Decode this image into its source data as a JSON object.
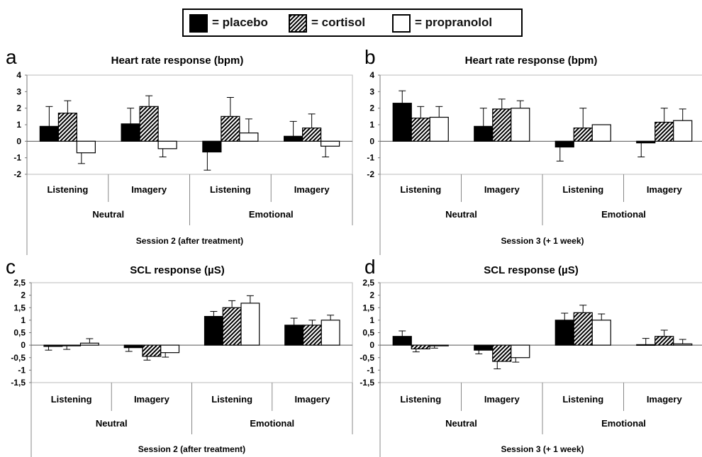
{
  "legend": {
    "items": [
      {
        "key": "placebo",
        "label": "= placebo",
        "fill": "solid-black"
      },
      {
        "key": "cortisol",
        "label": "= cortisol",
        "fill": "hatched"
      },
      {
        "key": "propranolol",
        "label": "= propranolol",
        "fill": "white"
      }
    ]
  },
  "colors": {
    "placebo": "#000000",
    "hatch": "#000000",
    "propranolol": "#ffffff",
    "axis": "#888888",
    "grid": "#bbbbbb"
  },
  "chart_data": [
    {
      "panel": "a",
      "type": "bar",
      "title": "Heart rate response (bpm)",
      "categories": [
        "Listening",
        "Imagery",
        "Listening",
        "Imagery"
      ],
      "groups": [
        "Neutral",
        "Emotional"
      ],
      "session": "Session 2 (after treatment)",
      "yticks": [
        "4",
        "3",
        "2",
        "1",
        "0",
        "-1",
        "-2"
      ],
      "ylim": [
        -2,
        4
      ],
      "series": [
        {
          "name": "placebo",
          "values": [
            0.9,
            1.05,
            -0.65,
            0.3
          ],
          "errors": [
            1.2,
            0.95,
            1.1,
            0.9
          ]
        },
        {
          "name": "cortisol",
          "values": [
            1.7,
            2.1,
            1.5,
            0.8
          ],
          "errors": [
            0.75,
            0.65,
            1.15,
            0.85
          ]
        },
        {
          "name": "propranolol",
          "values": [
            -0.7,
            -0.45,
            0.5,
            -0.3
          ],
          "errors": [
            0.65,
            0.5,
            0.85,
            0.65
          ]
        }
      ]
    },
    {
      "panel": "b",
      "type": "bar",
      "title": "Heart rate response (bpm)",
      "categories": [
        "Listening",
        "Imagery",
        "Listening",
        "Imagery"
      ],
      "groups": [
        "Neutral",
        "Emotional"
      ],
      "session": "Session 3 (+ 1 week)",
      "yticks": [
        "4",
        "3",
        "2",
        "1",
        "0",
        "-1",
        "-2"
      ],
      "ylim": [
        -2,
        4
      ],
      "series": [
        {
          "name": "placebo",
          "values": [
            2.3,
            0.9,
            -0.35,
            -0.1
          ],
          "errors": [
            0.75,
            1.1,
            0.85,
            0.85
          ]
        },
        {
          "name": "cortisol",
          "values": [
            1.4,
            1.95,
            0.8,
            1.15
          ],
          "errors": [
            0.7,
            0.6,
            1.2,
            0.85
          ]
        },
        {
          "name": "propranolol",
          "values": [
            1.45,
            2.0,
            1.0,
            1.25
          ],
          "errors": [
            0.65,
            0.45,
            0.0,
            0.7
          ]
        }
      ]
    },
    {
      "panel": "c",
      "type": "bar",
      "title": "SCL response (µS)",
      "categories": [
        "Listening",
        "Imagery",
        "Listening",
        "Imagery"
      ],
      "groups": [
        "Neutral",
        "Emotional"
      ],
      "session": "Session 2 (after treatment)",
      "yticks": [
        "2,5",
        "2",
        "1,5",
        "1",
        "0,5",
        "0",
        "-0,5",
        "-1",
        "-1,5"
      ],
      "ylim": [
        -1.5,
        2.5
      ],
      "series": [
        {
          "name": "placebo",
          "values": [
            -0.05,
            -0.1,
            1.15,
            0.8
          ],
          "errors": [
            0.15,
            0.15,
            0.2,
            0.28
          ]
        },
        {
          "name": "cortisol",
          "values": [
            -0.02,
            -0.45,
            1.5,
            0.8
          ],
          "errors": [
            0.15,
            0.15,
            0.28,
            0.2
          ]
        },
        {
          "name": "propranolol",
          "values": [
            0.08,
            -0.3,
            1.68,
            1.0
          ],
          "errors": [
            0.18,
            0.18,
            0.3,
            0.2
          ]
        }
      ]
    },
    {
      "panel": "d",
      "type": "bar",
      "title": "SCL response (µS)",
      "categories": [
        "Listening",
        "Imagery",
        "Listening",
        "Imagery"
      ],
      "groups": [
        "Neutral",
        "Emotional"
      ],
      "session": "Session 3 (+ 1 week)",
      "yticks": [
        "2,5",
        "2",
        "1,5",
        "1",
        "0,5",
        "0",
        "-0,5",
        "-1",
        "-1,5"
      ],
      "ylim": [
        -1.5,
        2.5
      ],
      "series": [
        {
          "name": "placebo",
          "values": [
            0.35,
            -0.2,
            1.0,
            0.02
          ],
          "errors": [
            0.22,
            0.15,
            0.28,
            0.25
          ]
        },
        {
          "name": "cortisol",
          "values": [
            -0.15,
            -0.65,
            1.3,
            0.35
          ],
          "errors": [
            0.12,
            0.3,
            0.3,
            0.25
          ]
        },
        {
          "name": "propranolol",
          "values": [
            -0.02,
            -0.5,
            1.0,
            0.05
          ],
          "errors": [
            0.1,
            0.18,
            0.25,
            0.18
          ]
        }
      ]
    }
  ]
}
